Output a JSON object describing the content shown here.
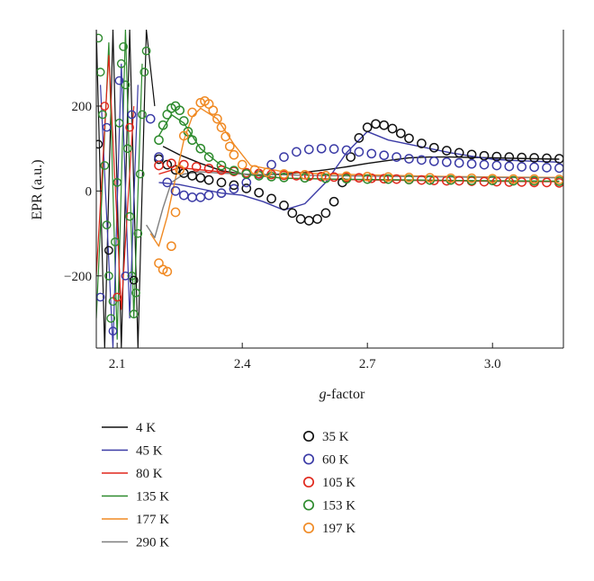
{
  "chart_data": {
    "type": "line",
    "xlabel_italic": "g",
    "xlabel_rest": "-factor",
    "ylabel": "EPR (a.u.)",
    "xlim": [
      2.05,
      3.17
    ],
    "ylim": [
      -370,
      380
    ],
    "xticks": [
      2.1,
      2.4,
      2.7,
      3.0
    ],
    "xtick_labels": [
      "2.1",
      "2.4",
      "2.7",
      "3.0"
    ],
    "yticks": [
      -200,
      0,
      200
    ],
    "ytick_labels": [
      "−200",
      "0",
      "200"
    ],
    "grid": false,
    "legend_placement": "below",
    "series": [
      {
        "name": "4 K",
        "style": "line",
        "color": "#111111",
        "x": [
          2.21,
          2.25,
          2.3,
          2.35,
          2.4,
          2.45,
          2.5,
          2.55,
          2.6,
          2.65,
          2.7,
          2.75,
          2.8,
          2.85,
          2.9,
          2.95,
          3.0,
          3.05,
          3.1,
          3.16
        ],
        "y": [
          105,
          85,
          65,
          48,
          40,
          38,
          40,
          44,
          50,
          57,
          65,
          72,
          78,
          80,
          80,
          79,
          78,
          77,
          76,
          75
        ]
      },
      {
        "name": "45 K",
        "style": "line",
        "color": "#3b3ba6",
        "x": [
          2.2,
          2.25,
          2.3,
          2.35,
          2.4,
          2.45,
          2.5,
          2.55,
          2.6,
          2.65,
          2.7,
          2.75,
          2.8,
          2.85,
          2.9,
          2.95,
          3.0,
          3.05,
          3.1,
          3.16
        ],
        "y": [
          20,
          15,
          5,
          -5,
          -10,
          -25,
          -45,
          -30,
          20,
          90,
          140,
          120,
          110,
          100,
          90,
          82,
          75,
          72,
          70,
          68
        ]
      },
      {
        "name": "80 K",
        "style": "line",
        "color": "#e0271b",
        "x": [
          2.2,
          2.25,
          2.3,
          2.35,
          2.4,
          2.45,
          2.5,
          2.6,
          2.7,
          2.8,
          2.9,
          3.0,
          3.16
        ],
        "y": [
          40,
          55,
          50,
          45,
          40,
          35,
          30,
          28,
          26,
          25,
          24,
          23,
          22
        ]
      },
      {
        "name": "135 K",
        "style": "line",
        "color": "#2e8b2e",
        "x": [
          2.2,
          2.23,
          2.26,
          2.3,
          2.35,
          2.4,
          2.5,
          2.6,
          2.7,
          2.8,
          2.9,
          3.0,
          3.16
        ],
        "y": [
          130,
          180,
          160,
          100,
          60,
          40,
          30,
          28,
          27,
          26,
          25,
          24,
          23
        ]
      },
      {
        "name": "177 K",
        "style": "line",
        "color": "#f08a24",
        "x": [
          2.18,
          2.2,
          2.22,
          2.24,
          2.26,
          2.28,
          2.3,
          2.34,
          2.38,
          2.42,
          2.5,
          2.6,
          2.7,
          2.8,
          2.9,
          3.0,
          3.16
        ],
        "y": [
          -100,
          -130,
          -60,
          30,
          120,
          175,
          195,
          170,
          110,
          60,
          45,
          40,
          38,
          36,
          34,
          33,
          32
        ]
      },
      {
        "name": "290 K",
        "style": "line",
        "color": "#7f7f7f",
        "x": [
          2.17,
          2.19,
          2.21,
          2.23,
          2.26,
          2.3,
          2.35,
          2.4,
          2.5,
          2.6,
          2.7,
          2.8,
          2.9,
          3.0,
          3.16
        ],
        "y": [
          -80,
          -110,
          -40,
          20,
          40,
          45,
          42,
          40,
          38,
          36,
          35,
          34,
          33,
          32,
          31
        ]
      },
      {
        "name": "35 K",
        "style": "marker",
        "color": "#111111",
        "x": [
          2.2,
          2.22,
          2.24,
          2.26,
          2.28,
          2.3,
          2.32,
          2.35,
          2.38,
          2.41,
          2.44,
          2.47,
          2.5,
          2.52,
          2.54,
          2.56,
          2.58,
          2.6,
          2.62,
          2.64,
          2.66,
          2.68,
          2.7,
          2.72,
          2.74,
          2.76,
          2.78,
          2.8,
          2.83,
          2.86,
          2.89,
          2.92,
          2.95,
          2.98,
          3.01,
          3.04,
          3.07,
          3.1,
          3.13,
          3.16
        ],
        "y": [
          75,
          62,
          50,
          42,
          36,
          31,
          26,
          20,
          14,
          6,
          -4,
          -18,
          -34,
          -52,
          -66,
          -70,
          -66,
          -52,
          -25,
          20,
          80,
          125,
          150,
          158,
          155,
          147,
          136,
          124,
          112,
          102,
          95,
          90,
          86,
          83,
          81,
          80,
          79,
          78,
          77,
          76
        ]
      },
      {
        "name": "60 K",
        "style": "marker",
        "color": "#3b3ba6",
        "x": [
          2.18,
          2.2,
          2.22,
          2.24,
          2.26,
          2.28,
          2.3,
          2.32,
          2.35,
          2.38,
          2.41,
          2.44,
          2.47,
          2.5,
          2.53,
          2.56,
          2.59,
          2.62,
          2.65,
          2.68,
          2.71,
          2.74,
          2.77,
          2.8,
          2.83,
          2.86,
          2.89,
          2.92,
          2.95,
          2.98,
          3.01,
          3.04,
          3.07,
          3.1,
          3.13,
          3.16
        ],
        "y": [
          170,
          80,
          20,
          0,
          -10,
          -15,
          -15,
          -10,
          -5,
          5,
          20,
          40,
          62,
          80,
          92,
          98,
          100,
          99,
          96,
          92,
          88,
          84,
          80,
          76,
          73,
          70,
          68,
          66,
          64,
          62,
          60,
          58,
          57,
          56,
          55,
          54
        ]
      },
      {
        "name": "105 K",
        "style": "marker",
        "color": "#e0271b",
        "x": [
          2.2,
          2.23,
          2.26,
          2.29,
          2.32,
          2.35,
          2.38,
          2.41,
          2.44,
          2.47,
          2.5,
          2.53,
          2.56,
          2.59,
          2.62,
          2.65,
          2.68,
          2.71,
          2.74,
          2.77,
          2.8,
          2.83,
          2.86,
          2.89,
          2.92,
          2.95,
          2.98,
          3.01,
          3.04,
          3.07,
          3.1,
          3.13,
          3.16
        ],
        "y": [
          60,
          65,
          62,
          57,
          53,
          49,
          46,
          43,
          41,
          39,
          37,
          36,
          35,
          34,
          33,
          32,
          31,
          30,
          29,
          28,
          27,
          26,
          25,
          24,
          24,
          23,
          22,
          22,
          21,
          21,
          20,
          20,
          19
        ]
      },
      {
        "name": "153 K",
        "style": "marker",
        "color": "#2e8b2e",
        "x": [
          2.2,
          2.21,
          2.22,
          2.23,
          2.24,
          2.25,
          2.26,
          2.27,
          2.28,
          2.3,
          2.32,
          2.35,
          2.38,
          2.41,
          2.44,
          2.47,
          2.5,
          2.55,
          2.6,
          2.65,
          2.7,
          2.75,
          2.8,
          2.85,
          2.9,
          2.95,
          3.0,
          3.05,
          3.1,
          3.16
        ],
        "y": [
          120,
          155,
          180,
          195,
          200,
          190,
          165,
          140,
          120,
          100,
          80,
          60,
          48,
          40,
          36,
          34,
          32,
          31,
          30,
          29,
          28,
          28,
          27,
          26,
          26,
          25,
          25,
          24,
          24,
          23
        ]
      },
      {
        "name": "197 K",
        "style": "marker",
        "color": "#f08a24",
        "x": [
          2.2,
          2.21,
          2.22,
          2.23,
          2.24,
          2.25,
          2.26,
          2.28,
          2.3,
          2.31,
          2.32,
          2.33,
          2.34,
          2.35,
          2.36,
          2.37,
          2.38,
          2.4,
          2.43,
          2.46,
          2.5,
          2.55,
          2.6,
          2.65,
          2.7,
          2.75,
          2.8,
          2.85,
          2.9,
          2.95,
          3.0,
          3.05,
          3.1,
          3.16
        ],
        "y": [
          -170,
          -185,
          -190,
          -130,
          -50,
          50,
          130,
          185,
          208,
          212,
          205,
          190,
          170,
          150,
          128,
          105,
          85,
          62,
          50,
          44,
          40,
          38,
          36,
          35,
          34,
          33,
          32,
          31,
          30,
          30,
          29,
          28,
          28,
          27
        ]
      }
    ],
    "low_g_region": {
      "x_end": 2.15,
      "lines": [
        {
          "color": "#111111",
          "x": [
            2.05,
            2.07,
            2.09,
            2.11,
            2.13,
            2.15,
            2.17,
            2.19
          ],
          "y": [
            380,
            -370,
            380,
            -370,
            380,
            -370,
            380,
            200
          ]
        },
        {
          "color": "#2e8b2e",
          "x": [
            2.05,
            2.08,
            2.1,
            2.12,
            2.14,
            2.16
          ],
          "y": [
            -300,
            350,
            -350,
            380,
            -300,
            300
          ]
        },
        {
          "color": "#3b3ba6",
          "x": [
            2.06,
            2.09,
            2.11,
            2.13,
            2.15
          ],
          "y": [
            250,
            -370,
            300,
            -300,
            250
          ]
        },
        {
          "color": "#e0271b",
          "x": [
            2.05,
            2.08,
            2.11,
            2.14
          ],
          "y": [
            -200,
            320,
            -280,
            200
          ]
        }
      ],
      "markers": [
        {
          "color": "#2e8b2e",
          "x": [
            2.055,
            2.06,
            2.065,
            2.07,
            2.075,
            2.08,
            2.085,
            2.09,
            2.095,
            2.1,
            2.105,
            2.11,
            2.115,
            2.12,
            2.125,
            2.13,
            2.135,
            2.14,
            2.145,
            2.15,
            2.155,
            2.16,
            2.165,
            2.17
          ],
          "y": [
            360,
            280,
            180,
            60,
            -80,
            -200,
            -300,
            -260,
            -120,
            20,
            160,
            300,
            340,
            250,
            100,
            -60,
            -200,
            -290,
            -240,
            -100,
            40,
            180,
            280,
            330
          ]
        },
        {
          "color": "#3b3ba6",
          "x": [
            2.06,
            2.075,
            2.09,
            2.105,
            2.12,
            2.135
          ],
          "y": [
            -250,
            150,
            -330,
            260,
            -200,
            180
          ]
        },
        {
          "color": "#e0271b",
          "x": [
            2.07,
            2.1,
            2.13
          ],
          "y": [
            200,
            -250,
            150
          ]
        },
        {
          "color": "#111111",
          "x": [
            2.055,
            2.08,
            2.14
          ],
          "y": [
            110,
            -140,
            -210
          ]
        }
      ]
    }
  }
}
